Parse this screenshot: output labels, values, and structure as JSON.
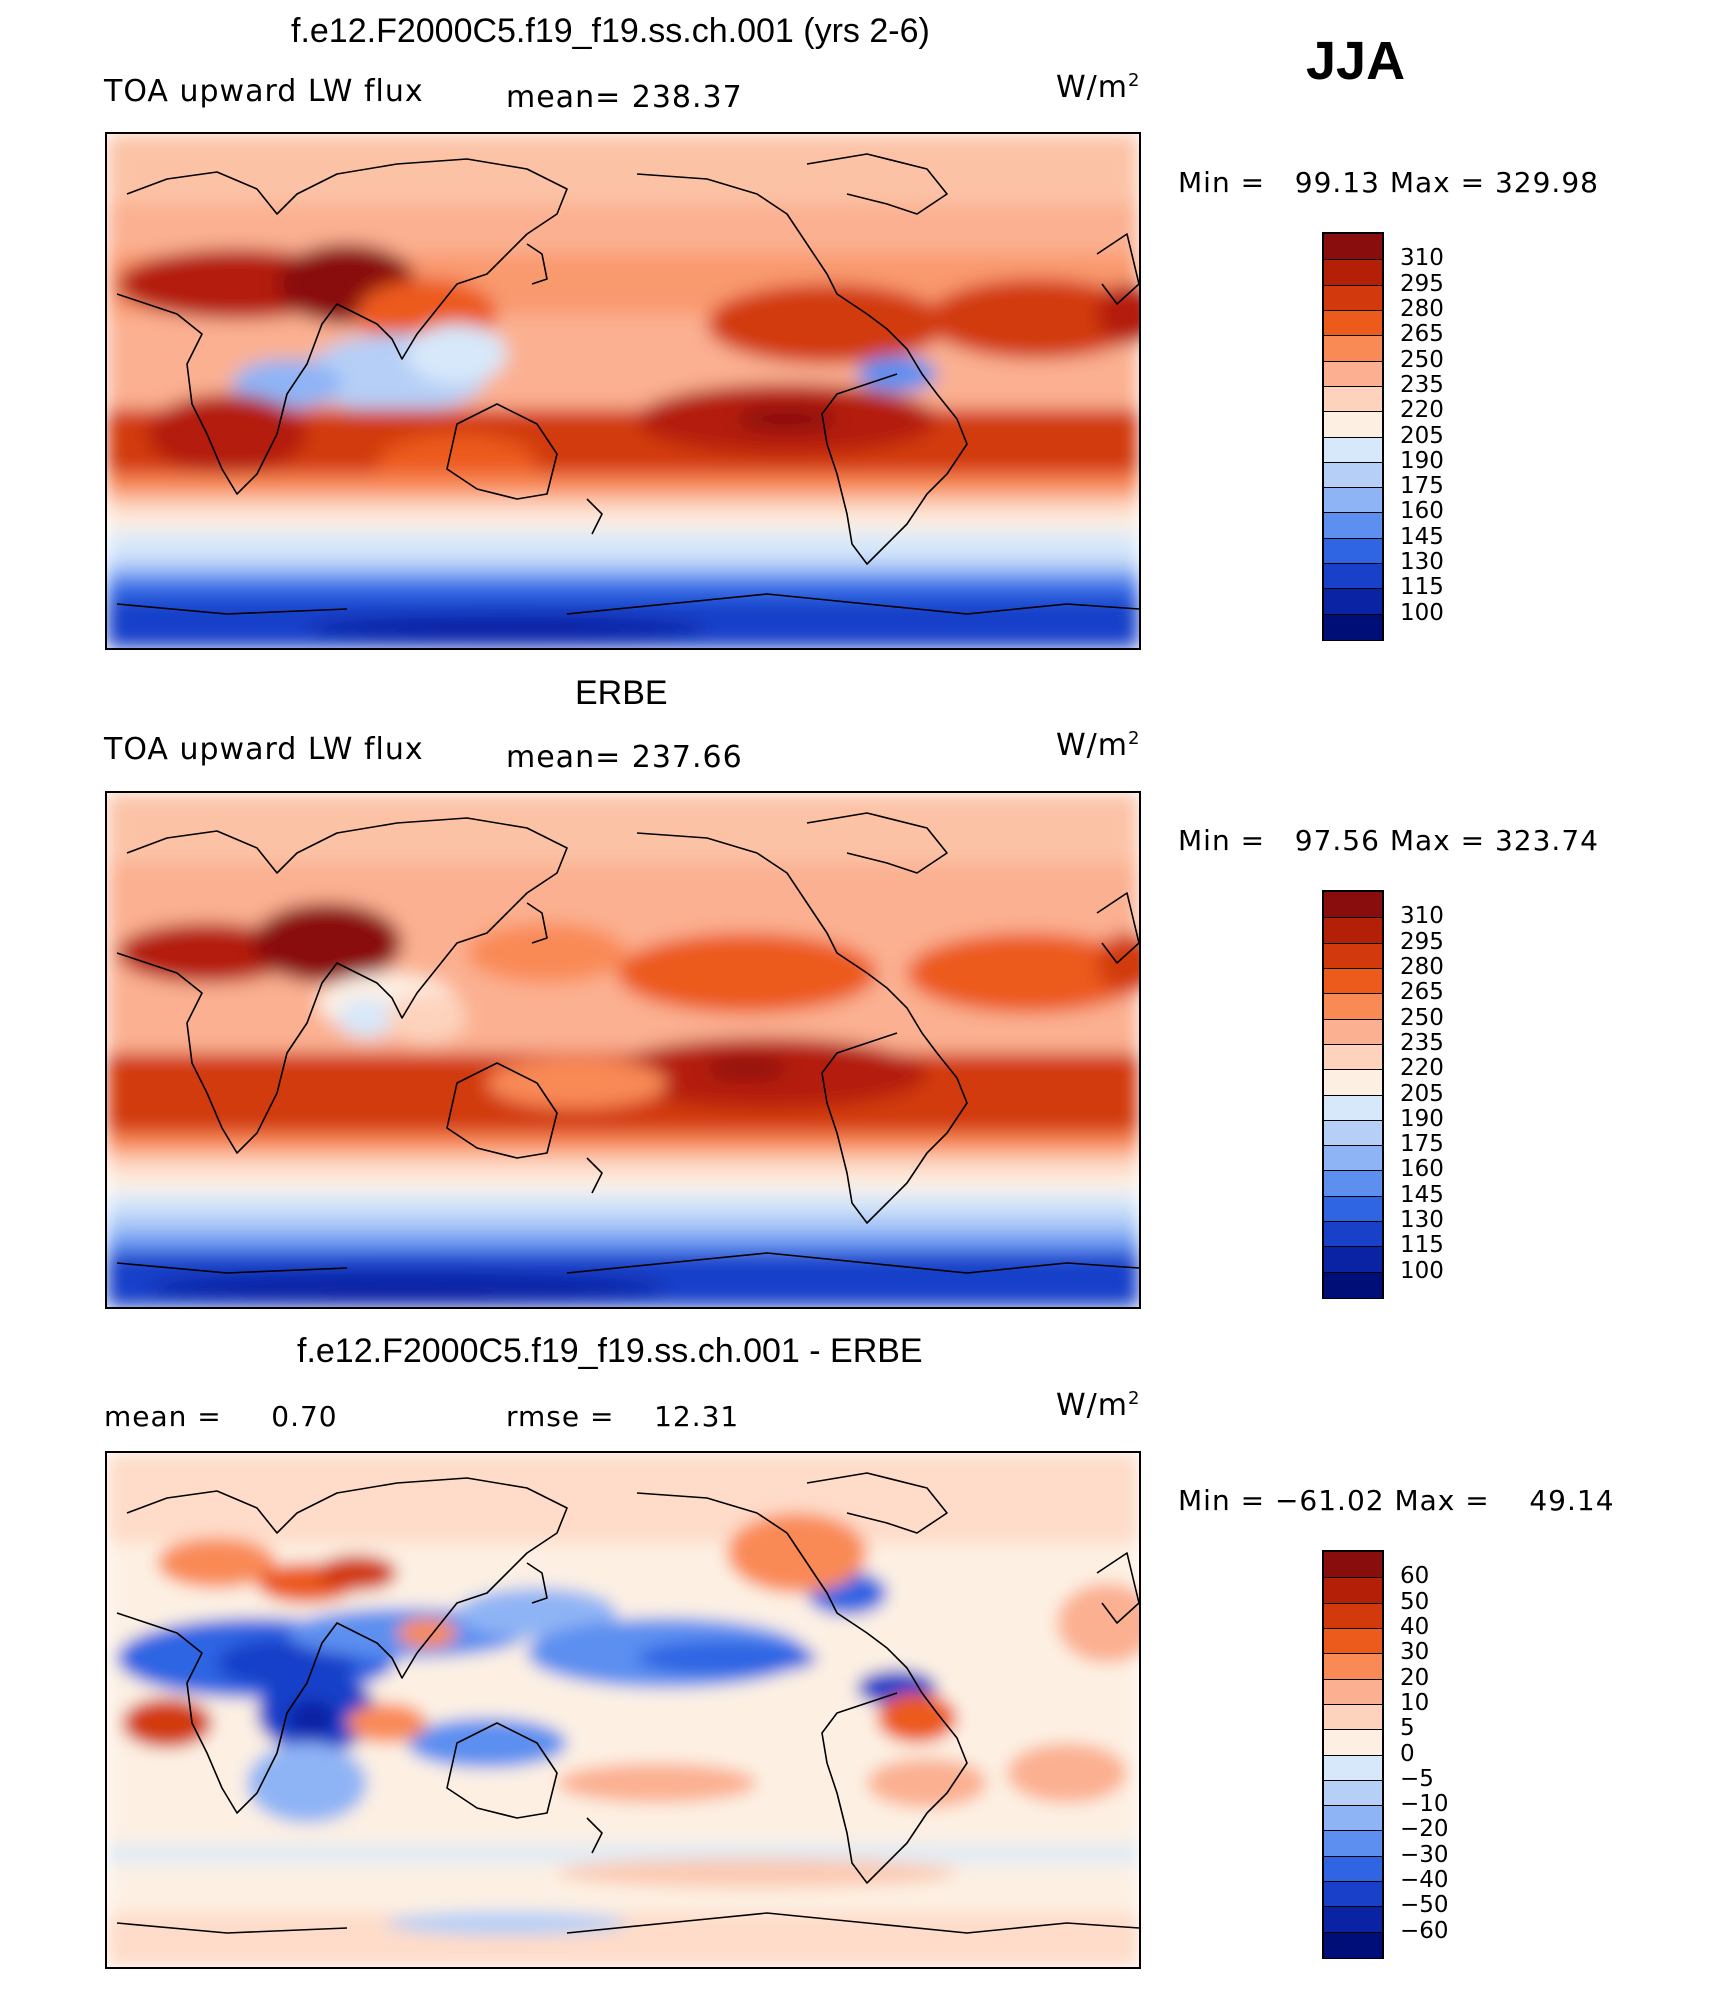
{
  "season": "JJA",
  "panels": [
    {
      "title": "f.e12.F2000C5.f19_f19.ss.ch.001 (yrs 2-6)",
      "left_text": "TOA upward LW flux",
      "center_text": "mean= 238.37",
      "unit_base": "W/m",
      "unit_sup": "2",
      "min_text": "Min =",
      "min_value": "99.13",
      "max_text": "Max =",
      "max_value": "329.98",
      "colorbar_labels": [
        "310",
        "295",
        "280",
        "265",
        "250",
        "235",
        "220",
        "205",
        "190",
        "175",
        "160",
        "145",
        "130",
        "115",
        "100"
      ],
      "colorbar_colors": [
        "#8a0d0d",
        "#b41f08",
        "#d23a0e",
        "#ec5a1c",
        "#f98a56",
        "#fbb091",
        "#fdd3bd",
        "#fdf0e3",
        "#d7e8fa",
        "#b5cff7",
        "#8fb4f5",
        "#5c8ff0",
        "#2f65e3",
        "#1840c9",
        "#0a22a4",
        "#000f78"
      ]
    },
    {
      "title": "ERBE",
      "left_text": "TOA upward LW flux",
      "center_text": "mean= 237.66",
      "unit_base": "W/m",
      "unit_sup": "2",
      "min_text": "Min =",
      "min_value": "97.56",
      "max_text": "Max =",
      "max_value": "323.74",
      "colorbar_labels": [
        "310",
        "295",
        "280",
        "265",
        "250",
        "235",
        "220",
        "205",
        "190",
        "175",
        "160",
        "145",
        "130",
        "115",
        "100"
      ],
      "colorbar_colors": [
        "#8a0d0d",
        "#b41f08",
        "#d23a0e",
        "#ec5a1c",
        "#f98a56",
        "#fbb091",
        "#fdd3bd",
        "#fdf0e3",
        "#d7e8fa",
        "#b5cff7",
        "#8fb4f5",
        "#5c8ff0",
        "#2f65e3",
        "#1840c9",
        "#0a22a4",
        "#000f78"
      ]
    },
    {
      "title": "f.e12.F2000C5.f19_f19.ss.ch.001 - ERBE",
      "left_text": "mean =     0.70",
      "center_text": "rmse =    12.31",
      "unit_base": "W/m",
      "unit_sup": "2",
      "min_text": "Min =",
      "min_value": "−61.02",
      "max_text": "Max =",
      "max_value": "49.14",
      "colorbar_labels": [
        "60",
        "50",
        "40",
        "30",
        "20",
        "10",
        "5",
        "0",
        "−5",
        "−10",
        "−20",
        "−30",
        "−40",
        "−50",
        "−60"
      ],
      "colorbar_colors": [
        "#8a0d0d",
        "#b41f08",
        "#d23a0e",
        "#ec5a1c",
        "#f98a56",
        "#fbb091",
        "#fdd3bd",
        "#fdf0e3",
        "#d7e8fa",
        "#b5cff7",
        "#8fb4f5",
        "#5c8ff0",
        "#2f65e3",
        "#1840c9",
        "#0a22a4",
        "#000f78"
      ]
    }
  ]
}
